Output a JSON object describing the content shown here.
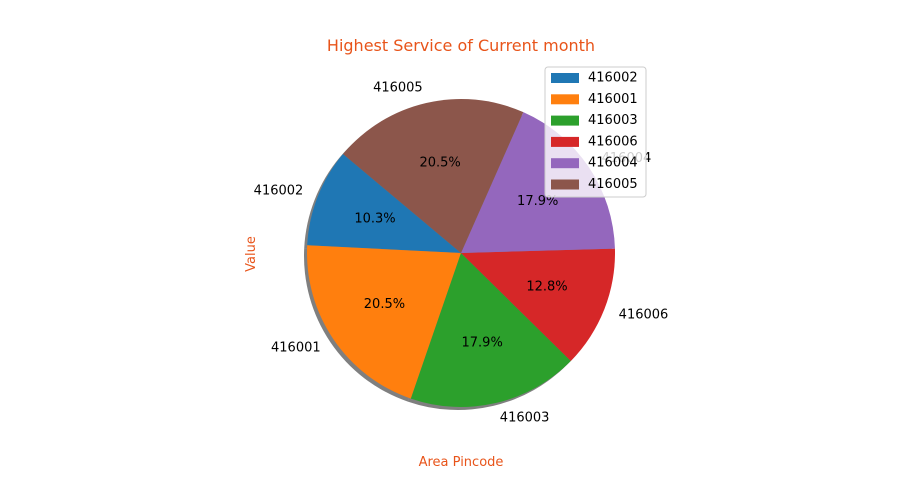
{
  "chart_data": {
    "type": "pie",
    "title": "Highest Service of Current month",
    "xlabel": "Area Pincode",
    "ylabel": "Value",
    "label_color": "#e8541a",
    "legend_placement": "top-right",
    "shadow": true,
    "start_angle_deg": 140,
    "direction": "counterclockwise",
    "slices": [
      {
        "label": "416002",
        "percent": 10.3,
        "pct_text": "10.3%",
        "color": "#1f77b4"
      },
      {
        "label": "416001",
        "percent": 20.5,
        "pct_text": "20.5%",
        "color": "#ff7f0e"
      },
      {
        "label": "416003",
        "percent": 17.9,
        "pct_text": "17.9%",
        "color": "#2ca02c"
      },
      {
        "label": "416006",
        "percent": 12.8,
        "pct_text": "12.8%",
        "color": "#d62728"
      },
      {
        "label": "416004",
        "percent": 17.9,
        "pct_text": "17.9%",
        "color": "#9467bd"
      },
      {
        "label": "416005",
        "percent": 20.5,
        "pct_text": "20.5%",
        "color": "#8c564b"
      }
    ]
  }
}
